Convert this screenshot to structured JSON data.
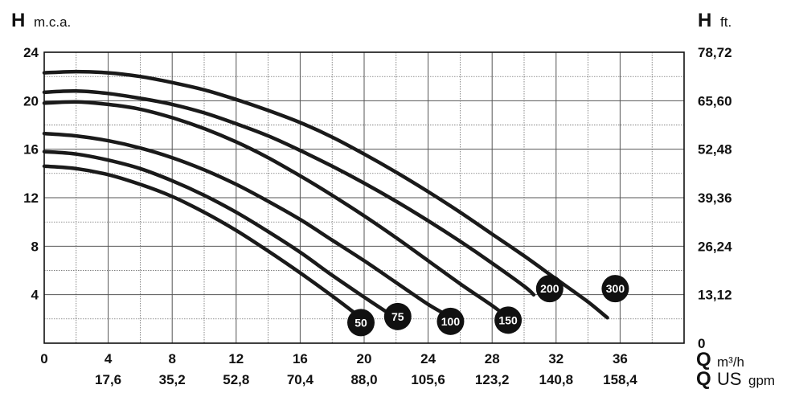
{
  "chart_data": {
    "type": "line",
    "y_left": {
      "symbol": "H",
      "unit": "m.c.a.",
      "min": 0,
      "max": 24,
      "ticks": [
        "4",
        "8",
        "12",
        "16",
        "20",
        "24"
      ]
    },
    "y_right": {
      "symbol": "H",
      "unit": "ft.",
      "ticks": [
        "0",
        "13,12",
        "26,24",
        "39,36",
        "52,48",
        "65,60",
        "78,72"
      ]
    },
    "x": {
      "symbol": "Q",
      "unit": "m³/h",
      "min": 0,
      "max": 40,
      "ticks": [
        "0",
        "4",
        "8",
        "12",
        "16",
        "20",
        "24",
        "28",
        "32",
        "36"
      ]
    },
    "x_secondary": {
      "symbol": "Q",
      "unit_main": "US",
      "unit_sub": "gpm",
      "ticks": [
        "17,6",
        "35,2",
        "52,8",
        "70,4",
        "88,0",
        "105,6",
        "123,2",
        "140,8",
        "158,4"
      ]
    },
    "grid": true,
    "series": [
      {
        "name": "50",
        "points": [
          [
            0,
            14.6
          ],
          [
            2,
            14.4
          ],
          [
            4,
            13.9
          ],
          [
            6,
            13.1
          ],
          [
            8,
            12.1
          ],
          [
            10,
            10.8
          ],
          [
            12,
            9.3
          ],
          [
            14,
            7.6
          ],
          [
            16,
            5.8
          ],
          [
            18,
            3.9
          ],
          [
            19.6,
            2.3
          ]
        ]
      },
      {
        "name": "75",
        "points": [
          [
            0,
            15.8
          ],
          [
            2,
            15.6
          ],
          [
            4,
            15.1
          ],
          [
            6,
            14.4
          ],
          [
            8,
            13.4
          ],
          [
            10,
            12.2
          ],
          [
            12,
            10.8
          ],
          [
            14,
            9.2
          ],
          [
            16,
            7.5
          ],
          [
            18,
            5.6
          ],
          [
            20,
            3.8
          ],
          [
            21.6,
            2.4
          ]
        ]
      },
      {
        "name": "100",
        "points": [
          [
            0,
            17.3
          ],
          [
            2,
            17.1
          ],
          [
            4,
            16.7
          ],
          [
            6,
            16.1
          ],
          [
            8,
            15.3
          ],
          [
            10,
            14.3
          ],
          [
            12,
            13.1
          ],
          [
            14,
            11.7
          ],
          [
            16,
            10.2
          ],
          [
            18,
            8.5
          ],
          [
            20,
            6.8
          ],
          [
            22,
            5.0
          ],
          [
            24,
            3.2
          ],
          [
            25.2,
            2.3
          ]
        ]
      },
      {
        "name": "150",
        "points": [
          [
            0,
            19.8
          ],
          [
            2,
            19.9
          ],
          [
            4,
            19.7
          ],
          [
            6,
            19.3
          ],
          [
            8,
            18.6
          ],
          [
            10,
            17.7
          ],
          [
            12,
            16.6
          ],
          [
            14,
            15.3
          ],
          [
            16,
            13.8
          ],
          [
            18,
            12.2
          ],
          [
            20,
            10.5
          ],
          [
            22,
            8.7
          ],
          [
            24,
            6.8
          ],
          [
            26,
            4.9
          ],
          [
            28,
            3.1
          ],
          [
            28.8,
            2.3
          ]
        ]
      },
      {
        "name": "200",
        "points": [
          [
            0,
            20.7
          ],
          [
            2,
            20.8
          ],
          [
            4,
            20.6
          ],
          [
            6,
            20.2
          ],
          [
            8,
            19.7
          ],
          [
            10,
            19.0
          ],
          [
            12,
            18.1
          ],
          [
            14,
            17.1
          ],
          [
            16,
            15.9
          ],
          [
            18,
            14.6
          ],
          [
            20,
            13.2
          ],
          [
            22,
            11.7
          ],
          [
            24,
            10.1
          ],
          [
            26,
            8.4
          ],
          [
            28,
            6.6
          ],
          [
            30,
            4.7
          ],
          [
            30.6,
            4.0
          ]
        ]
      },
      {
        "name": "300",
        "points": [
          [
            0,
            22.3
          ],
          [
            2,
            22.4
          ],
          [
            4,
            22.3
          ],
          [
            6,
            22.0
          ],
          [
            8,
            21.5
          ],
          [
            10,
            20.9
          ],
          [
            12,
            20.1
          ],
          [
            14,
            19.2
          ],
          [
            16,
            18.2
          ],
          [
            18,
            17.0
          ],
          [
            20,
            15.6
          ],
          [
            22,
            14.1
          ],
          [
            24,
            12.5
          ],
          [
            26,
            10.8
          ],
          [
            28,
            9.0
          ],
          [
            30,
            7.2
          ],
          [
            32,
            5.3
          ],
          [
            34,
            3.4
          ],
          [
            35.2,
            2.1
          ]
        ]
      }
    ]
  }
}
